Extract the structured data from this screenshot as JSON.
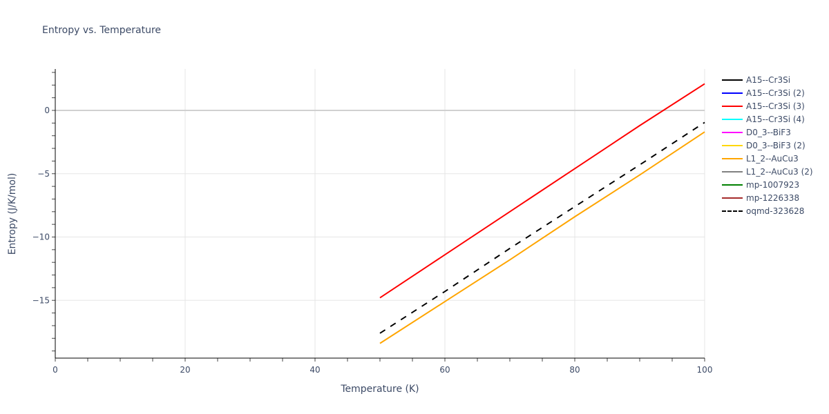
{
  "chart_data": {
    "type": "line",
    "title": "Entropy vs. Temperature",
    "xlabel": "Temperature (K)",
    "ylabel": "Entropy (J/K/mol)",
    "xlim": [
      0,
      100
    ],
    "ylim": [
      -19.5,
      3.3
    ],
    "x_ticks": [
      0,
      20,
      40,
      60,
      80,
      100
    ],
    "y_ticks": [
      0,
      -5,
      -10,
      -15
    ],
    "y_tick_labels": [
      "0",
      "−5",
      "−10",
      "−15"
    ],
    "grid": true,
    "legend_position": "right",
    "series": [
      {
        "name": "A15--Cr3Si",
        "color": "#000000",
        "dash": "solid",
        "x": [],
        "y": []
      },
      {
        "name": "A15--Cr3Si (2)",
        "color": "#0000ff",
        "dash": "solid",
        "x": [],
        "y": []
      },
      {
        "name": "A15--Cr3Si (3)",
        "color": "#ff0000",
        "dash": "solid",
        "x": [
          50,
          60,
          70,
          80,
          90,
          100
        ],
        "y": [
          -14.8,
          -11.4,
          -8.0,
          -4.6,
          -1.2,
          2.1
        ]
      },
      {
        "name": "A15--Cr3Si (4)",
        "color": "#00ffff",
        "dash": "solid",
        "x": [],
        "y": []
      },
      {
        "name": "D0_3--BiF3",
        "color": "#ff00ff",
        "dash": "solid",
        "x": [],
        "y": []
      },
      {
        "name": "D0_3--BiF3 (2)",
        "color": "#ffd700",
        "dash": "solid",
        "x": [],
        "y": []
      },
      {
        "name": "L1_2--AuCu3",
        "color": "#ffa500",
        "dash": "solid",
        "x": [
          50,
          60,
          70,
          80,
          90,
          100
        ],
        "y": [
          -18.4,
          -15.1,
          -11.8,
          -8.4,
          -5.1,
          -1.7
        ]
      },
      {
        "name": "L1_2--AuCu3 (2)",
        "color": "#808080",
        "dash": "solid",
        "x": [],
        "y": []
      },
      {
        "name": "mp-1007923",
        "color": "#008000",
        "dash": "solid",
        "x": [],
        "y": []
      },
      {
        "name": "mp-1226338",
        "color": "#a52a2a",
        "dash": "solid",
        "x": [],
        "y": []
      },
      {
        "name": "oqmd-323628",
        "color": "#000000",
        "dash": "dash",
        "x": [
          50,
          60,
          70,
          80,
          90,
          100
        ],
        "y": [
          -17.6,
          -14.3,
          -10.9,
          -7.6,
          -4.3,
          -0.95
        ]
      }
    ]
  }
}
